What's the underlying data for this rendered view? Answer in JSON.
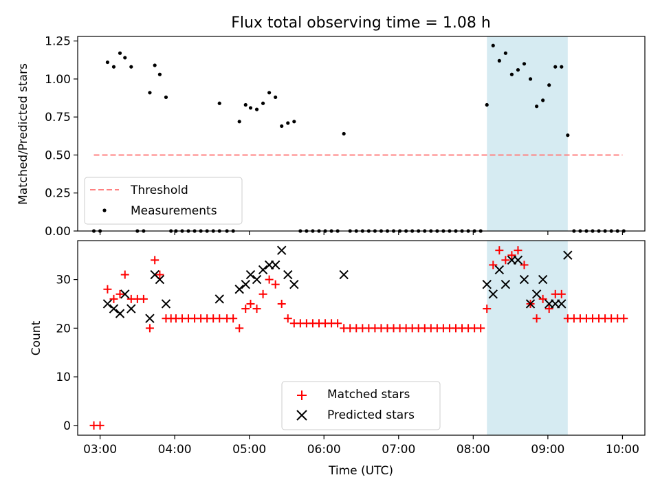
{
  "title": "Flux total observing time = 1.08 h",
  "colors": {
    "threshold": "#ff8080",
    "measurements": "#000000",
    "matched": "#ff0000",
    "predicted": "#000000",
    "span": "#add8e6"
  },
  "chart_data": [
    {
      "type": "scatter",
      "ylabel": "Matched/Predicted stars",
      "xlim": [
        "02:42",
        "10:18"
      ],
      "ylim": [
        0,
        1.28
      ],
      "yticks": [
        "0.00",
        "0.25",
        "0.50",
        "0.75",
        "1.00",
        "1.25"
      ],
      "ytick_values": [
        0,
        0.25,
        0.5,
        0.75,
        1.0,
        1.25
      ],
      "highlight_span": [
        "08:11",
        "09:16"
      ],
      "legend": {
        "placement": "lower-left",
        "threshold_label": "Threshold",
        "measurements_label": "Measurements"
      },
      "threshold": {
        "name": "Threshold",
        "y": 0.5,
        "x_range": [
          "02:55",
          "10:00"
        ]
      },
      "series": [
        {
          "name": "Measurements",
          "points": [
            [
              "02:55",
              0.0
            ],
            [
              "03:00",
              0.0
            ],
            [
              "03:06",
              1.11
            ],
            [
              "03:11",
              1.08
            ],
            [
              "03:16",
              1.17
            ],
            [
              "03:20",
              1.14
            ],
            [
              "03:25",
              1.08
            ],
            [
              "03:30",
              0.0
            ],
            [
              "03:35",
              0.0
            ],
            [
              "03:40",
              0.91
            ],
            [
              "03:44",
              1.09
            ],
            [
              "03:48",
              1.03
            ],
            [
              "03:53",
              0.88
            ],
            [
              "03:57",
              0.0
            ],
            [
              "04:01",
              0.0
            ],
            [
              "04:06",
              0.0
            ],
            [
              "04:11",
              0.0
            ],
            [
              "04:16",
              0.0
            ],
            [
              "04:21",
              0.0
            ],
            [
              "04:26",
              0.0
            ],
            [
              "04:31",
              0.0
            ],
            [
              "04:36",
              0.0
            ],
            [
              "04:36",
              0.84
            ],
            [
              "04:42",
              0.0
            ],
            [
              "04:47",
              0.0
            ],
            [
              "04:52",
              0.72
            ],
            [
              "04:57",
              0.83
            ],
            [
              "05:01",
              0.81
            ],
            [
              "05:06",
              0.8
            ],
            [
              "05:11",
              0.84
            ],
            [
              "05:16",
              0.91
            ],
            [
              "05:21",
              0.88
            ],
            [
              "05:26",
              0.69
            ],
            [
              "05:31",
              0.71
            ],
            [
              "05:36",
              0.72
            ],
            [
              "05:41",
              0.0
            ],
            [
              "05:46",
              0.0
            ],
            [
              "05:51",
              0.0
            ],
            [
              "05:56",
              0.0
            ],
            [
              "06:01",
              0.0
            ],
            [
              "06:06",
              0.0
            ],
            [
              "06:11",
              0.0
            ],
            [
              "06:16",
              0.64
            ],
            [
              "06:21",
              0.0
            ],
            [
              "06:26",
              0.0
            ],
            [
              "06:31",
              0.0
            ],
            [
              "06:36",
              0.0
            ],
            [
              "06:41",
              0.0
            ],
            [
              "06:46",
              0.0
            ],
            [
              "06:51",
              0.0
            ],
            [
              "06:56",
              0.0
            ],
            [
              "07:01",
              0.0
            ],
            [
              "07:06",
              0.0
            ],
            [
              "07:11",
              0.0
            ],
            [
              "07:16",
              0.0
            ],
            [
              "07:21",
              0.0
            ],
            [
              "07:26",
              0.0
            ],
            [
              "07:31",
              0.0
            ],
            [
              "07:36",
              0.0
            ],
            [
              "07:41",
              0.0
            ],
            [
              "07:46",
              0.0
            ],
            [
              "07:51",
              0.0
            ],
            [
              "07:56",
              0.0
            ],
            [
              "08:01",
              0.0
            ],
            [
              "08:06",
              0.0
            ],
            [
              "08:11",
              0.83
            ],
            [
              "08:16",
              1.22
            ],
            [
              "08:21",
              1.12
            ],
            [
              "08:26",
              1.17
            ],
            [
              "08:31",
              1.03
            ],
            [
              "08:36",
              1.06
            ],
            [
              "08:41",
              1.1
            ],
            [
              "08:46",
              1.0
            ],
            [
              "08:51",
              0.82
            ],
            [
              "08:56",
              0.86
            ],
            [
              "09:01",
              0.96
            ],
            [
              "09:06",
              1.08
            ],
            [
              "09:11",
              1.08
            ],
            [
              "09:16",
              0.63
            ],
            [
              "09:21",
              0.0
            ],
            [
              "09:26",
              0.0
            ],
            [
              "09:31",
              0.0
            ],
            [
              "09:36",
              0.0
            ],
            [
              "09:41",
              0.0
            ],
            [
              "09:46",
              0.0
            ],
            [
              "09:51",
              0.0
            ],
            [
              "09:56",
              0.0
            ],
            [
              "10:01",
              0.0
            ]
          ]
        }
      ]
    },
    {
      "type": "scatter",
      "xlabel": "Time (UTC)",
      "ylabel": "Count",
      "xlim": [
        "02:42",
        "10:18"
      ],
      "ylim": [
        -2,
        38
      ],
      "yticks": [
        "0",
        "10",
        "20",
        "30"
      ],
      "ytick_values": [
        0,
        10,
        20,
        30
      ],
      "xticks": [
        "03:00",
        "04:00",
        "05:00",
        "06:00",
        "07:00",
        "08:00",
        "09:00",
        "10:00"
      ],
      "highlight_span": [
        "08:11",
        "09:16"
      ],
      "legend": {
        "placement": "lower-center",
        "matched_label": "Matched stars",
        "predicted_label": "Predicted stars"
      },
      "series": [
        {
          "name": "Matched stars",
          "marker": "plus",
          "points": [
            [
              "02:55",
              0
            ],
            [
              "03:00",
              0
            ],
            [
              "03:06",
              28
            ],
            [
              "03:11",
              26
            ],
            [
              "03:16",
              27
            ],
            [
              "03:20",
              31
            ],
            [
              "03:25",
              26
            ],
            [
              "03:30",
              26
            ],
            [
              "03:35",
              26
            ],
            [
              "03:40",
              20
            ],
            [
              "03:44",
              34
            ],
            [
              "03:48",
              31
            ],
            [
              "03:53",
              22
            ],
            [
              "03:57",
              22
            ],
            [
              "04:01",
              22
            ],
            [
              "04:06",
              22
            ],
            [
              "04:11",
              22
            ],
            [
              "04:16",
              22
            ],
            [
              "04:21",
              22
            ],
            [
              "04:26",
              22
            ],
            [
              "04:31",
              22
            ],
            [
              "04:36",
              22
            ],
            [
              "04:42",
              22
            ],
            [
              "04:47",
              22
            ],
            [
              "04:52",
              20
            ],
            [
              "04:57",
              24
            ],
            [
              "05:01",
              25
            ],
            [
              "05:06",
              24
            ],
            [
              "05:11",
              27
            ],
            [
              "05:16",
              30
            ],
            [
              "05:21",
              29
            ],
            [
              "05:26",
              25
            ],
            [
              "05:31",
              22
            ],
            [
              "05:36",
              21
            ],
            [
              "05:41",
              21
            ],
            [
              "05:46",
              21
            ],
            [
              "05:51",
              21
            ],
            [
              "05:56",
              21
            ],
            [
              "06:01",
              21
            ],
            [
              "06:06",
              21
            ],
            [
              "06:11",
              21
            ],
            [
              "06:16",
              20
            ],
            [
              "06:21",
              20
            ],
            [
              "06:26",
              20
            ],
            [
              "06:31",
              20
            ],
            [
              "06:36",
              20
            ],
            [
              "06:41",
              20
            ],
            [
              "06:46",
              20
            ],
            [
              "06:51",
              20
            ],
            [
              "06:56",
              20
            ],
            [
              "07:01",
              20
            ],
            [
              "07:06",
              20
            ],
            [
              "07:11",
              20
            ],
            [
              "07:16",
              20
            ],
            [
              "07:21",
              20
            ],
            [
              "07:26",
              20
            ],
            [
              "07:31",
              20
            ],
            [
              "07:36",
              20
            ],
            [
              "07:41",
              20
            ],
            [
              "07:46",
              20
            ],
            [
              "07:51",
              20
            ],
            [
              "07:56",
              20
            ],
            [
              "08:01",
              20
            ],
            [
              "08:06",
              20
            ],
            [
              "08:11",
              24
            ],
            [
              "08:16",
              33
            ],
            [
              "08:21",
              36
            ],
            [
              "08:26",
              34
            ],
            [
              "08:31",
              35
            ],
            [
              "08:36",
              36
            ],
            [
              "08:41",
              33
            ],
            [
              "08:46",
              25
            ],
            [
              "08:51",
              22
            ],
            [
              "08:56",
              26
            ],
            [
              "09:01",
              24
            ],
            [
              "09:06",
              27
            ],
            [
              "09:11",
              27
            ],
            [
              "09:16",
              22
            ],
            [
              "09:21",
              22
            ],
            [
              "09:26",
              22
            ],
            [
              "09:31",
              22
            ],
            [
              "09:36",
              22
            ],
            [
              "09:41",
              22
            ],
            [
              "09:46",
              22
            ],
            [
              "09:51",
              22
            ],
            [
              "09:56",
              22
            ],
            [
              "10:01",
              22
            ]
          ]
        },
        {
          "name": "Predicted stars",
          "marker": "x",
          "points": [
            [
              "03:06",
              25
            ],
            [
              "03:11",
              24
            ],
            [
              "03:16",
              23
            ],
            [
              "03:20",
              27
            ],
            [
              "03:25",
              24
            ],
            [
              "03:40",
              22
            ],
            [
              "03:44",
              31
            ],
            [
              "03:48",
              30
            ],
            [
              "03:53",
              25
            ],
            [
              "04:36",
              26
            ],
            [
              "04:52",
              28
            ],
            [
              "04:57",
              29
            ],
            [
              "05:01",
              31
            ],
            [
              "05:06",
              30
            ],
            [
              "05:11",
              32
            ],
            [
              "05:16",
              33
            ],
            [
              "05:21",
              33
            ],
            [
              "05:26",
              36
            ],
            [
              "05:31",
              31
            ],
            [
              "05:36",
              29
            ],
            [
              "06:16",
              31
            ],
            [
              "08:11",
              29
            ],
            [
              "08:16",
              27
            ],
            [
              "08:21",
              32
            ],
            [
              "08:26",
              29
            ],
            [
              "08:31",
              34
            ],
            [
              "08:36",
              34
            ],
            [
              "08:41",
              30
            ],
            [
              "08:46",
              25
            ],
            [
              "08:51",
              27
            ],
            [
              "08:56",
              30
            ],
            [
              "09:01",
              25
            ],
            [
              "09:06",
              25
            ],
            [
              "09:11",
              25
            ],
            [
              "09:16",
              35
            ]
          ]
        }
      ]
    }
  ]
}
